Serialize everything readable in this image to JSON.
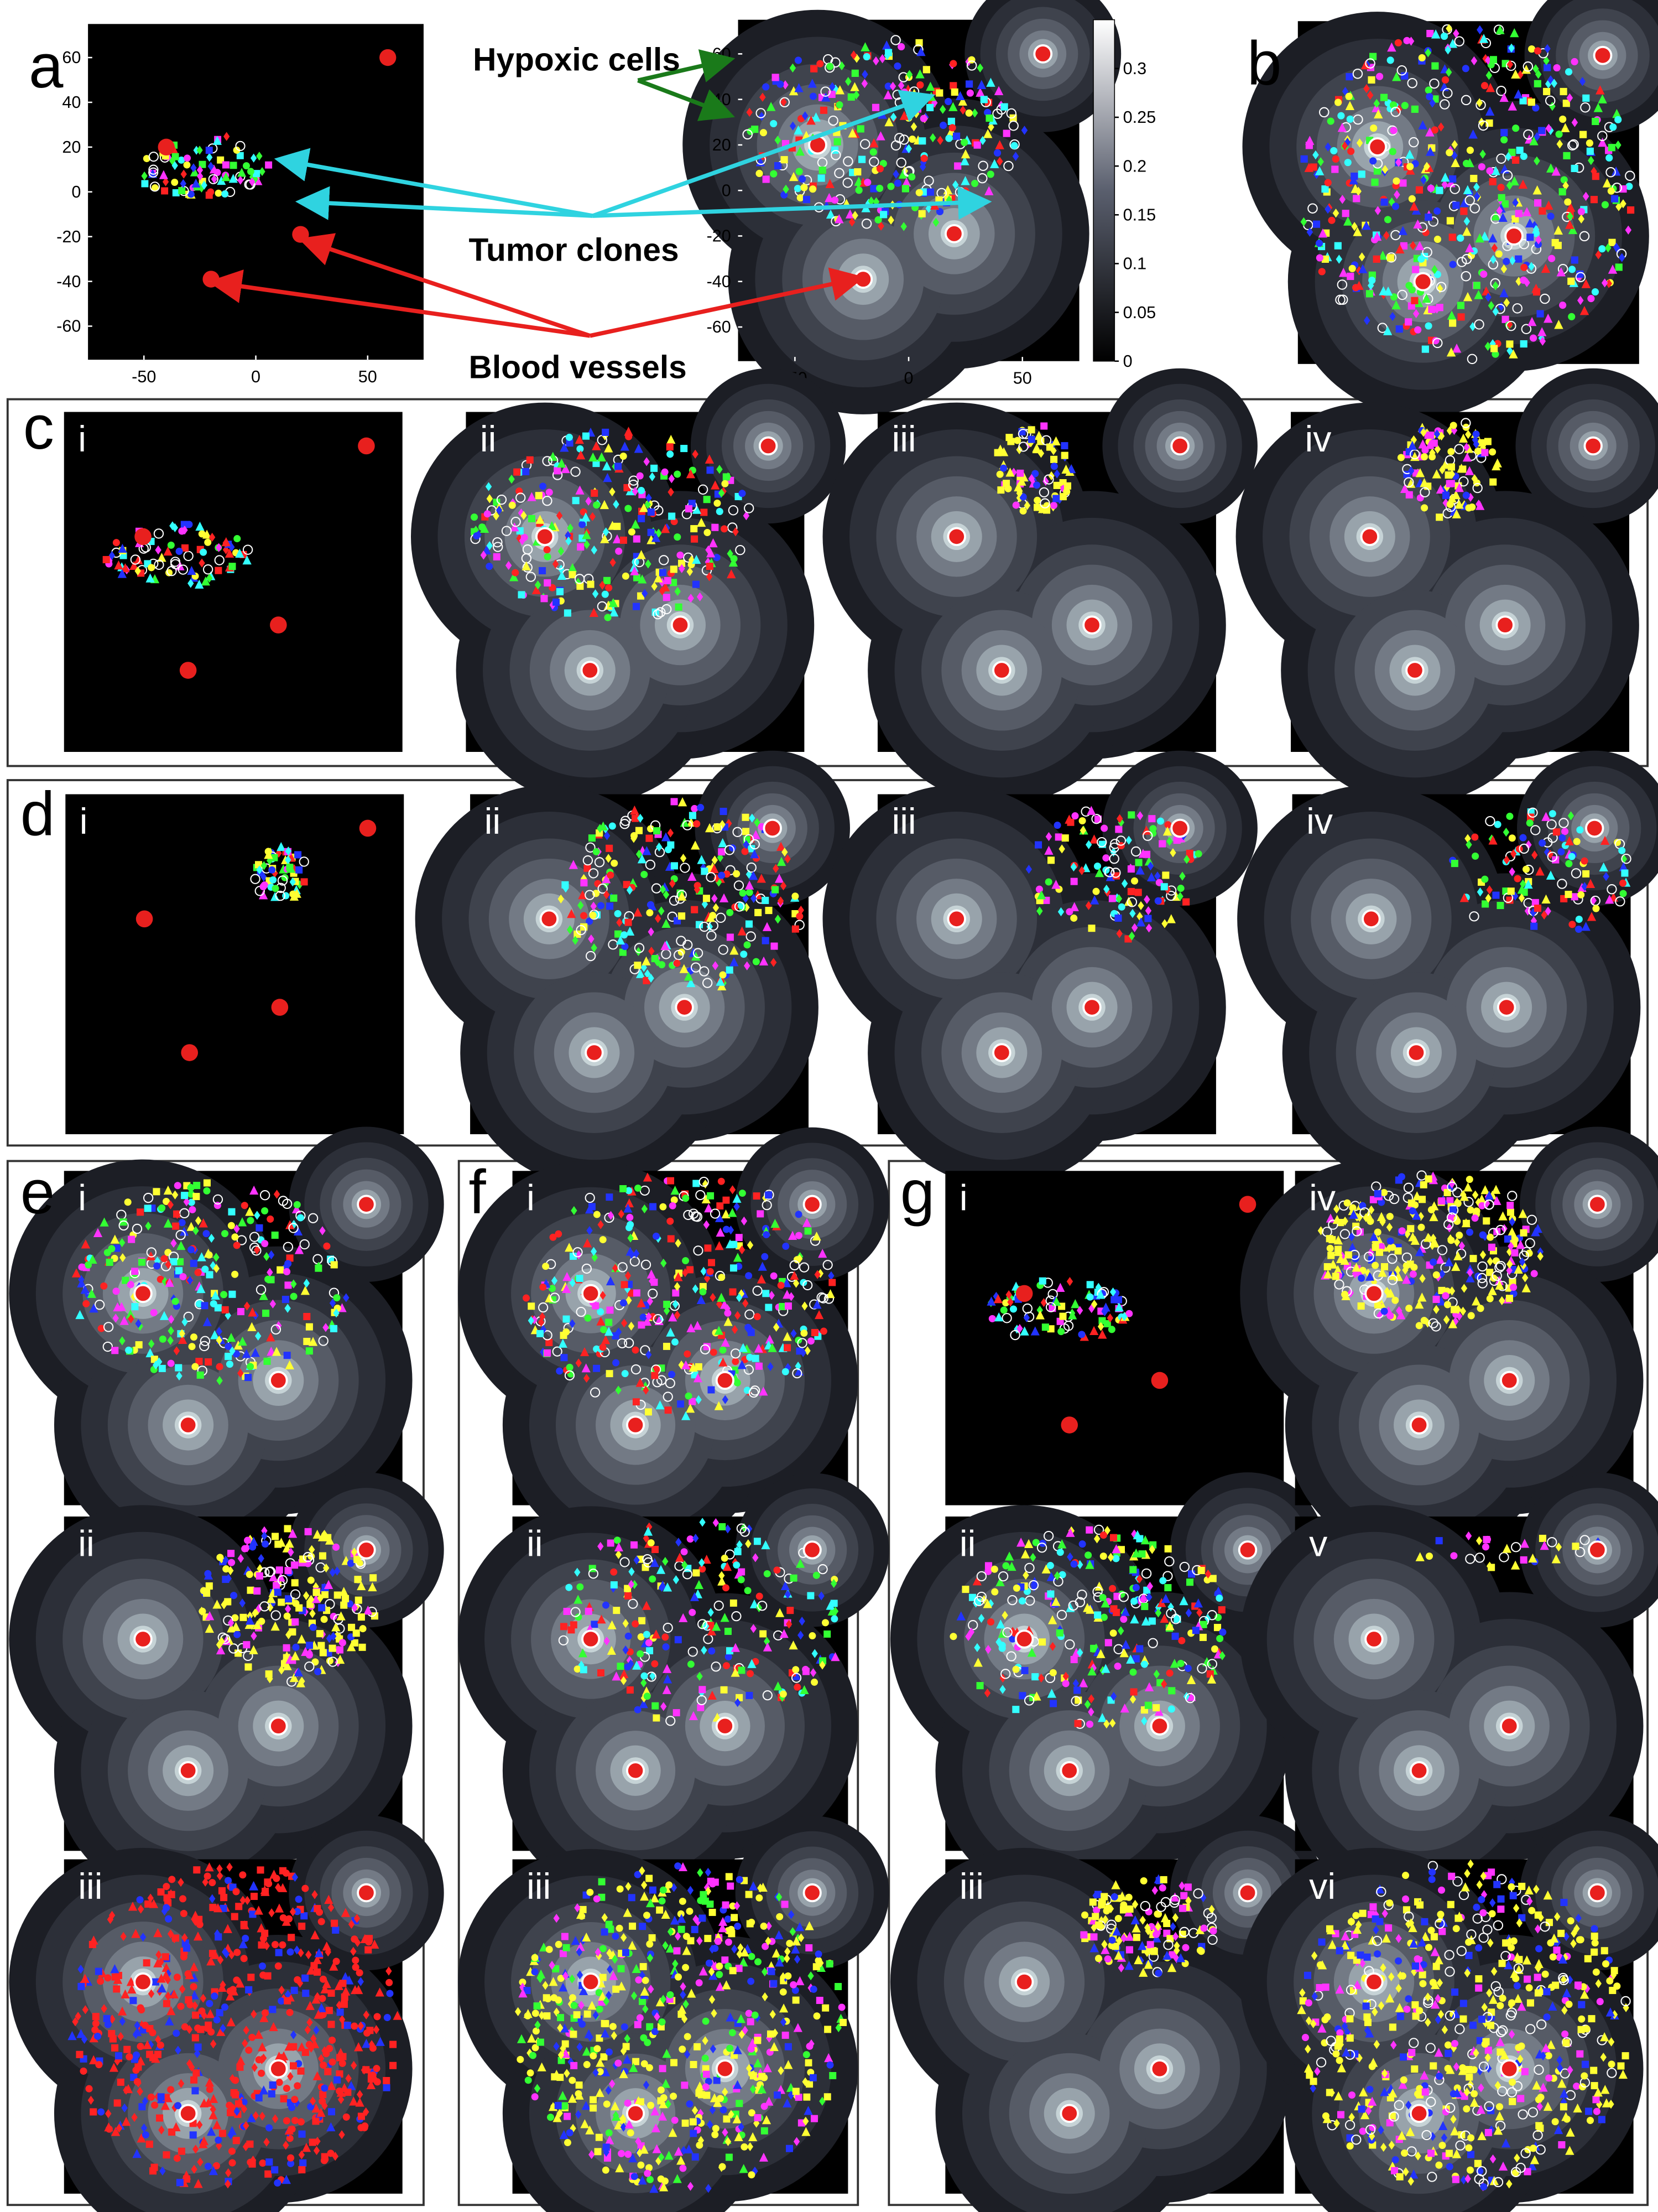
{
  "panel_a": {
    "annotations": [
      "Hypoxic  cells",
      "Tumor clones",
      "Blood vessels"
    ],
    "xlim": [
      -75,
      75
    ],
    "ylim": [
      -75,
      75
    ],
    "xticks": [
      -50,
      0,
      50
    ],
    "yticks": [
      60,
      40,
      20,
      0,
      -20,
      -40,
      -60
    ],
    "vessels": {
      "x": [
        59,
        -40,
        20,
        -20
      ],
      "y": [
        60,
        20,
        -19,
        -39
      ]
    },
    "colorbar": {
      "lim": [
        0,
        0.35
      ],
      "ticks": [
        0,
        0.05,
        0.1,
        0.15,
        0.2,
        0.25,
        0.3
      ]
    }
  },
  "panels": [
    {
      "label": "a"
    },
    {
      "label": "b"
    },
    {
      "label": "c",
      "subpanels": [
        "i",
        "ii",
        "iii",
        "iv"
      ]
    },
    {
      "label": "d",
      "subpanels": [
        "i",
        "ii",
        "iii",
        "iv"
      ]
    },
    {
      "label": "e",
      "subpanels": [
        "i",
        "ii",
        "iii"
      ]
    },
    {
      "label": "f",
      "subpanels": [
        "i",
        "ii",
        "iii"
      ]
    },
    {
      "label": "g",
      "subpanels": [
        "i",
        "ii",
        "iii",
        "iv",
        "v",
        "vi"
      ]
    }
  ]
}
